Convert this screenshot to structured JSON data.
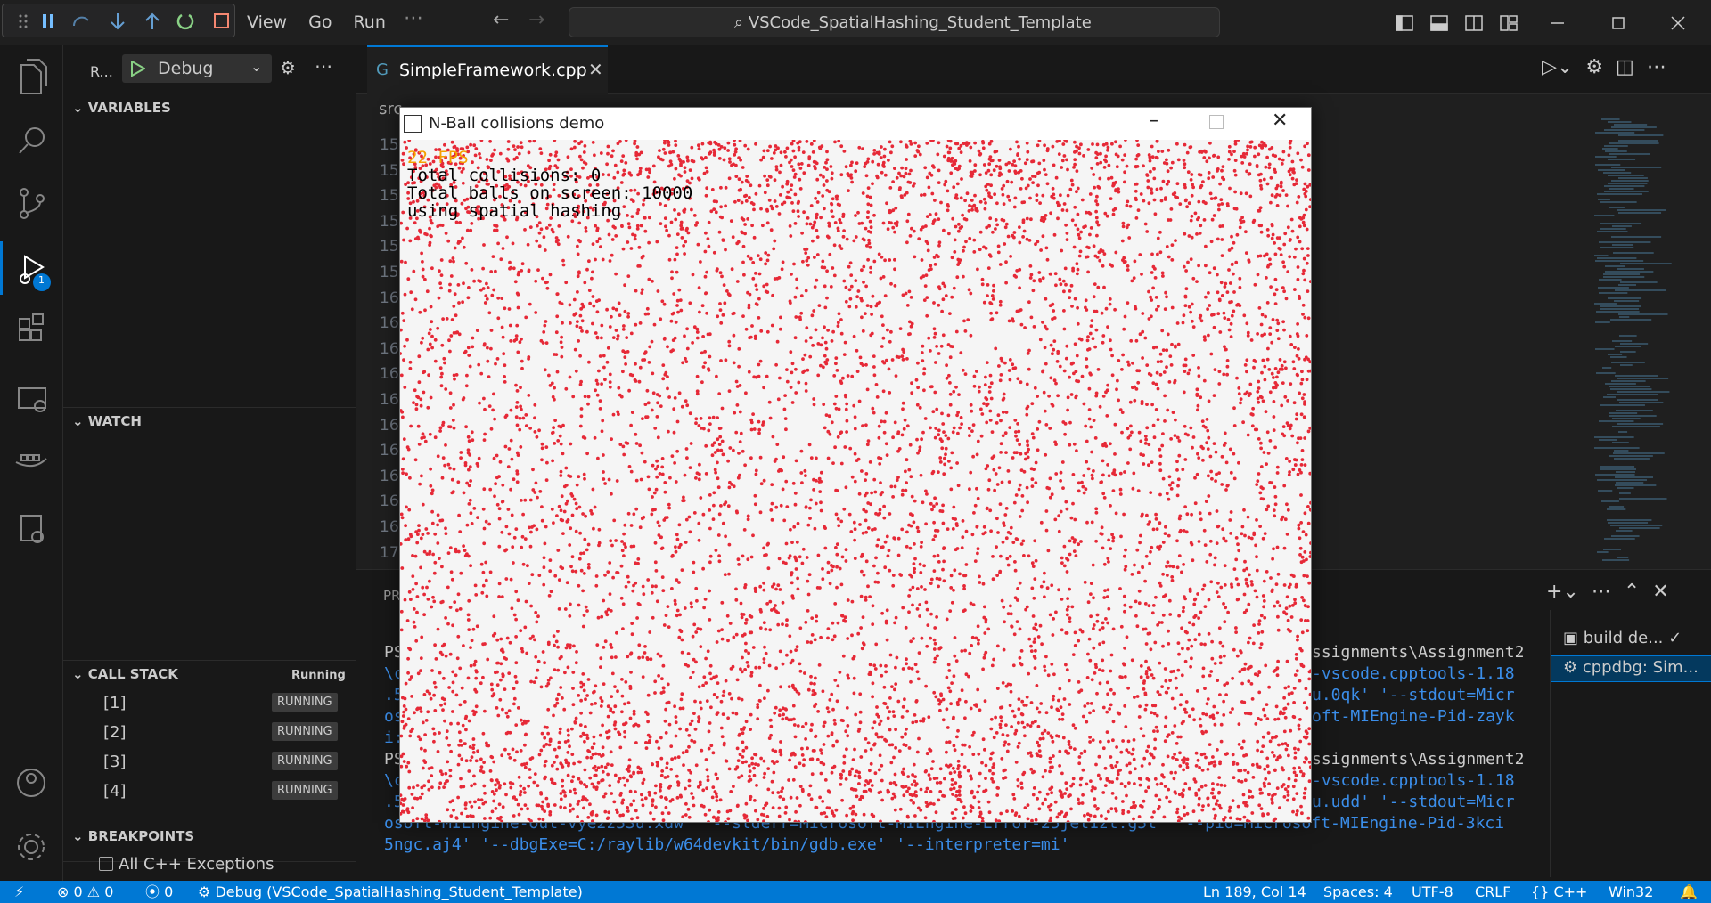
{
  "title_bar": {
    "menu": [
      "View",
      "Go",
      "Run"
    ],
    "search": "VSCode_SpatialHashing_Student_Template"
  },
  "activity_bar": {
    "debug_badge": "1"
  },
  "sidebar": {
    "run_label": "R...",
    "config": "Debug",
    "variables": "VARIABLES",
    "watch": "WATCH",
    "call_stack": "CALL STACK",
    "call_stack_state": "Running",
    "threads": [
      {
        "name": "[1]",
        "state": "RUNNING"
      },
      {
        "name": "[2]",
        "state": "RUNNING"
      },
      {
        "name": "[3]",
        "state": "RUNNING"
      },
      {
        "name": "[4]",
        "state": "RUNNING"
      }
    ],
    "breakpoints": "BREAKPOINTS",
    "breakpoint_items": [
      "All C++ Exceptions"
    ]
  },
  "editor": {
    "tab": "SimpleFramework.cpp",
    "breadcrumb": "src",
    "line_numbers": [
      "15",
      "15",
      "15",
      "15",
      "15",
      "15",
      "16",
      "16",
      "16",
      "16",
      "16",
      "16",
      "16",
      "16",
      "16",
      "16",
      "17"
    ]
  },
  "game_window": {
    "title": "N-Ball collisions demo",
    "fps": "22 FPS",
    "lines": [
      "Total collisions: 0",
      "Total balls on screen: 10000",
      "using spatial hashing"
    ]
  },
  "panel": {
    "tab_fragment": "PR",
    "terminal_left": [
      "PS",
      "\\c",
      ".5",
      "os",
      "i:",
      "PS",
      "\\c",
      ".5"
    ],
    "terminal_right": [
      "ssignments\\Assignment2",
      "-vscode.cpptools-1.18",
      "u.0qk' '--stdout=Micr",
      "oft-MIEngine-Pid-zayk",
      "",
      "ssignments\\Assignment2",
      "-vscode.cpptools-1.18",
      "u.udd' '--stdout=Micr"
    ],
    "terminal_bottom": [
      "osoft-MIEngine-Out-vye2z53u.xdw' '--stderr=Microsoft-MIEngine-Error-25jet1zt.g5t' '--pid=Microsoft-MIEngine-Pid-3kci",
      "5ngc.aj4' '--dbgExe=C:/raylib/w64devkit/bin/gdb.exe' '--interpreter=mi'"
    ],
    "terminals": [
      "build de...",
      "cppdbg: Sim..."
    ]
  },
  "status_bar": {
    "errors": "0",
    "warnings": "0",
    "ports": "0",
    "debug": "Debug (VSCode_SpatialHashing_Student_Template)",
    "position": "Ln 189, Col 14",
    "spaces": "Spaces: 4",
    "encoding": "UTF-8",
    "eol": "CRLF",
    "language": "{} C++",
    "platform": "Win32"
  }
}
